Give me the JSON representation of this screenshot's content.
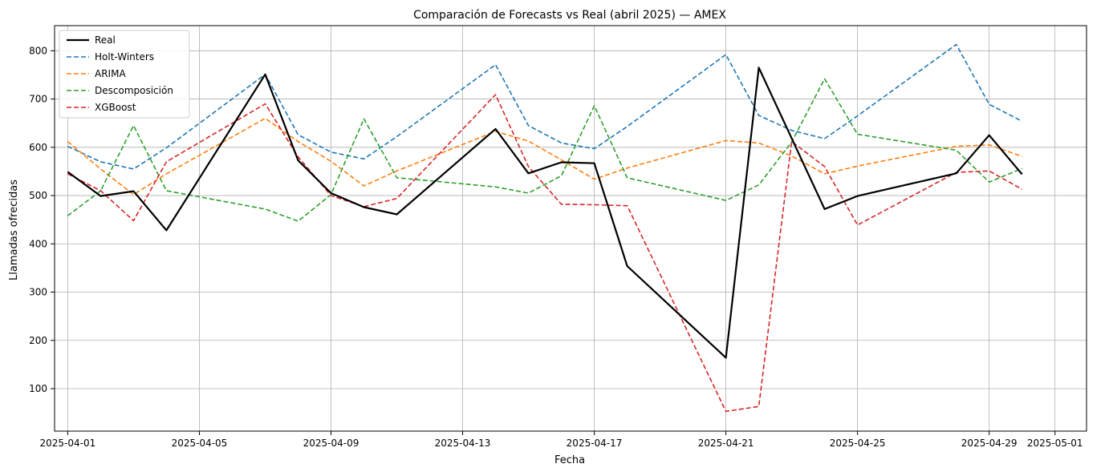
{
  "chart_data": {
    "type": "line",
    "title": "Comparación de Forecasts vs Real (abril 2025) — AMEX",
    "xlabel": "Fecha",
    "ylabel": "Llamadas ofrecidas",
    "x": [
      "2025-04-01",
      "2025-04-02",
      "2025-04-03",
      "2025-04-04",
      "2025-04-07",
      "2025-04-08",
      "2025-04-09",
      "2025-04-10",
      "2025-04-11",
      "2025-04-14",
      "2025-04-15",
      "2025-04-16",
      "2025-04-17",
      "2025-04-18",
      "2025-04-21",
      "2025-04-22",
      "2025-04-23",
      "2025-04-24",
      "2025-04-25",
      "2025-04-28",
      "2025-04-29",
      "2025-04-30"
    ],
    "xlim": [
      "2025-03-31T14:24",
      "2025-05-01T23:00"
    ],
    "ylim": [
      12,
      852
    ],
    "x_ticks": [
      "2025-04-01",
      "2025-04-05",
      "2025-04-09",
      "2025-04-13",
      "2025-04-17",
      "2025-04-21",
      "2025-04-25",
      "2025-04-29",
      "2025-05-01"
    ],
    "y_ticks": [
      100,
      200,
      300,
      400,
      500,
      600,
      700,
      800
    ],
    "grid": true,
    "legend_position": "top-left",
    "series": [
      {
        "name": "Real",
        "color": "#000000",
        "style": "solid",
        "values": [
          549,
          499,
          509,
          428,
          751,
          573,
          505,
          476,
          461,
          638,
          546,
          569,
          567,
          354,
          164,
          765,
          null,
          472,
          499,
          546,
          625,
          544
        ]
      },
      {
        "name": "Holt-Winters",
        "color": "#1f77b4",
        "style": "dashed",
        "values": [
          602,
          570,
          555,
          599,
          751,
          626,
          590,
          576,
          622,
          771,
          645,
          609,
          597,
          643,
          792,
          666,
          635,
          618,
          665,
          813,
          689,
          654
        ]
      },
      {
        "name": "ARIMA",
        "color": "#ff7f0e",
        "style": "dashed",
        "values": [
          612,
          555,
          502,
          545,
          660,
          612,
          571,
          520,
          551,
          633,
          613,
          574,
          534,
          557,
          614,
          609,
          582,
          545,
          561,
          602,
          605,
          581
        ]
      },
      {
        "name": "Descomposición",
        "color": "#2ca02c",
        "style": "dashed",
        "values": [
          458,
          510,
          645,
          510,
          472,
          447,
          502,
          659,
          537,
          518,
          505,
          541,
          686,
          537,
          490,
          522,
          611,
          742,
          627,
          594,
          528,
          556
        ]
      },
      {
        "name": "XGBoost",
        "color": "#d62728",
        "style": "dashed",
        "values": [
          545,
          510,
          448,
          570,
          690,
          580,
          500,
          477,
          494,
          709,
          560,
          482,
          481,
          479,
          53,
          63,
          612,
          560,
          439,
          548,
          551,
          513
        ]
      }
    ]
  }
}
